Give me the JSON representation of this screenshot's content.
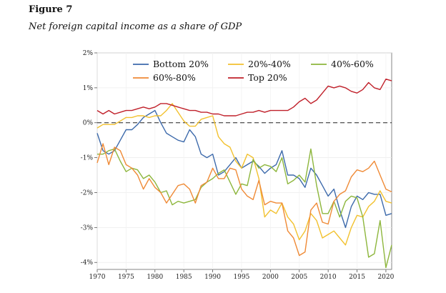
{
  "figure_label": "Figure 7",
  "figure_title": "Net foreign capital income as a share of GDP",
  "chart_data": {
    "type": "line",
    "title": "Net foreign capital income as a share of GDP",
    "xlabel": "",
    "ylabel": "",
    "xlim": [
      1970,
      2021
    ],
    "ylim": [
      -4.2,
      2.0
    ],
    "x_ticks": [
      1970,
      1975,
      1980,
      1985,
      1990,
      1995,
      2000,
      2005,
      2010,
      2015,
      2020
    ],
    "y_ticks": [
      2,
      1,
      0,
      -1,
      -2,
      -3,
      -4
    ],
    "y_tick_labels": [
      "2%",
      "1%",
      "0%",
      "-1%",
      "-2%",
      "-3%",
      "-4%"
    ],
    "reference_line": {
      "y": 0,
      "style": "dashed"
    },
    "legend_position": "top-center",
    "x": [
      1970,
      1971,
      1972,
      1973,
      1974,
      1975,
      1976,
      1977,
      1978,
      1979,
      1980,
      1981,
      1982,
      1983,
      1984,
      1985,
      1986,
      1987,
      1988,
      1989,
      1990,
      1991,
      1992,
      1993,
      1994,
      1995,
      1996,
      1997,
      1998,
      1999,
      2000,
      2001,
      2002,
      2003,
      2004,
      2005,
      2006,
      2007,
      2008,
      2009,
      2010,
      2011,
      2012,
      2013,
      2014,
      2015,
      2016,
      2017,
      2018,
      2019,
      2020,
      2021
    ],
    "series": [
      {
        "name": "Bottom 20%",
        "color": "#3d6aab",
        "values": [
          -0.3,
          -0.8,
          -0.9,
          -0.8,
          -0.5,
          -0.2,
          -0.2,
          -0.05,
          0.15,
          0.25,
          0.35,
          0.0,
          -0.3,
          -0.4,
          -0.5,
          -0.55,
          -0.2,
          -0.4,
          -0.9,
          -1.0,
          -0.9,
          -1.5,
          -1.4,
          -1.2,
          -1.0,
          -1.3,
          -1.2,
          -1.1,
          -1.25,
          -1.45,
          -1.3,
          -1.2,
          -0.8,
          -1.5,
          -1.5,
          -1.6,
          -1.85,
          -1.3,
          -1.5,
          -1.8,
          -2.1,
          -1.9,
          -2.5,
          -3.0,
          -2.4,
          -2.1,
          -2.2,
          -2.0,
          -2.05,
          -2.05,
          -2.65,
          -2.6
        ]
      },
      {
        "name": "20%-40%",
        "color": "#f2c12e",
        "values": [
          -0.15,
          -0.05,
          -0.05,
          -0.05,
          0.05,
          0.15,
          0.15,
          0.2,
          0.2,
          0.15,
          0.2,
          0.2,
          0.35,
          0.55,
          0.3,
          0.05,
          -0.1,
          -0.1,
          0.1,
          0.15,
          0.2,
          -0.4,
          -0.6,
          -0.7,
          -1.1,
          -1.3,
          -0.9,
          -1.0,
          -1.6,
          -2.7,
          -2.5,
          -2.6,
          -2.3,
          -2.7,
          -2.9,
          -3.35,
          -3.1,
          -2.6,
          -2.8,
          -3.3,
          -3.2,
          -3.1,
          -3.3,
          -3.5,
          -3.0,
          -2.65,
          -2.7,
          -2.4,
          -2.25,
          -1.95,
          -2.25,
          -2.3
        ]
      },
      {
        "name": "40%-60%",
        "color": "#8db63c",
        "values": [
          -0.9,
          -0.9,
          -0.8,
          -0.75,
          -1.1,
          -1.4,
          -1.3,
          -1.35,
          -1.6,
          -1.5,
          -1.7,
          -2.0,
          -1.95,
          -2.35,
          -2.25,
          -2.3,
          -2.25,
          -2.2,
          -1.85,
          -1.7,
          -1.6,
          -1.45,
          -1.35,
          -1.7,
          -2.05,
          -1.75,
          -1.8,
          -1.05,
          -1.3,
          -1.2,
          -1.25,
          -1.4,
          -1.0,
          -1.75,
          -1.65,
          -1.5,
          -1.7,
          -0.75,
          -1.8,
          -2.6,
          -2.6,
          -2.25,
          -2.7,
          -2.25,
          -2.1,
          -2.15,
          -2.7,
          -3.85,
          -3.75,
          -2.8,
          -4.15,
          -3.5
        ]
      },
      {
        "name": "60%-80%",
        "color": "#ef8a36",
        "values": [
          -1.15,
          -0.6,
          -1.2,
          -0.7,
          -0.8,
          -1.2,
          -1.3,
          -1.5,
          -1.9,
          -1.6,
          -1.85,
          -2.0,
          -2.3,
          -2.05,
          -1.8,
          -1.75,
          -1.9,
          -2.3,
          -1.8,
          -1.7,
          -1.3,
          -1.6,
          -1.6,
          -1.3,
          -1.35,
          -1.9,
          -2.1,
          -2.2,
          -1.65,
          -2.35,
          -2.25,
          -2.3,
          -2.3,
          -3.1,
          -3.3,
          -3.8,
          -3.7,
          -2.5,
          -2.3,
          -2.85,
          -2.9,
          -2.25,
          -2.05,
          -1.95,
          -1.55,
          -1.35,
          -1.4,
          -1.3,
          -1.1,
          -1.5,
          -1.9,
          -1.98
        ]
      },
      {
        "name": "Top 20%",
        "color": "#c0202a",
        "values": [
          0.35,
          0.25,
          0.35,
          0.25,
          0.3,
          0.35,
          0.35,
          0.4,
          0.45,
          0.4,
          0.45,
          0.55,
          0.55,
          0.5,
          0.45,
          0.4,
          0.35,
          0.35,
          0.3,
          0.3,
          0.25,
          0.25,
          0.2,
          0.2,
          0.2,
          0.25,
          0.3,
          0.3,
          0.35,
          0.3,
          0.35,
          0.35,
          0.35,
          0.35,
          0.45,
          0.6,
          0.7,
          0.55,
          0.65,
          0.85,
          1.05,
          1.0,
          1.05,
          1.0,
          0.9,
          0.85,
          0.95,
          1.15,
          1.0,
          0.95,
          1.25,
          1.2
        ]
      }
    ]
  }
}
